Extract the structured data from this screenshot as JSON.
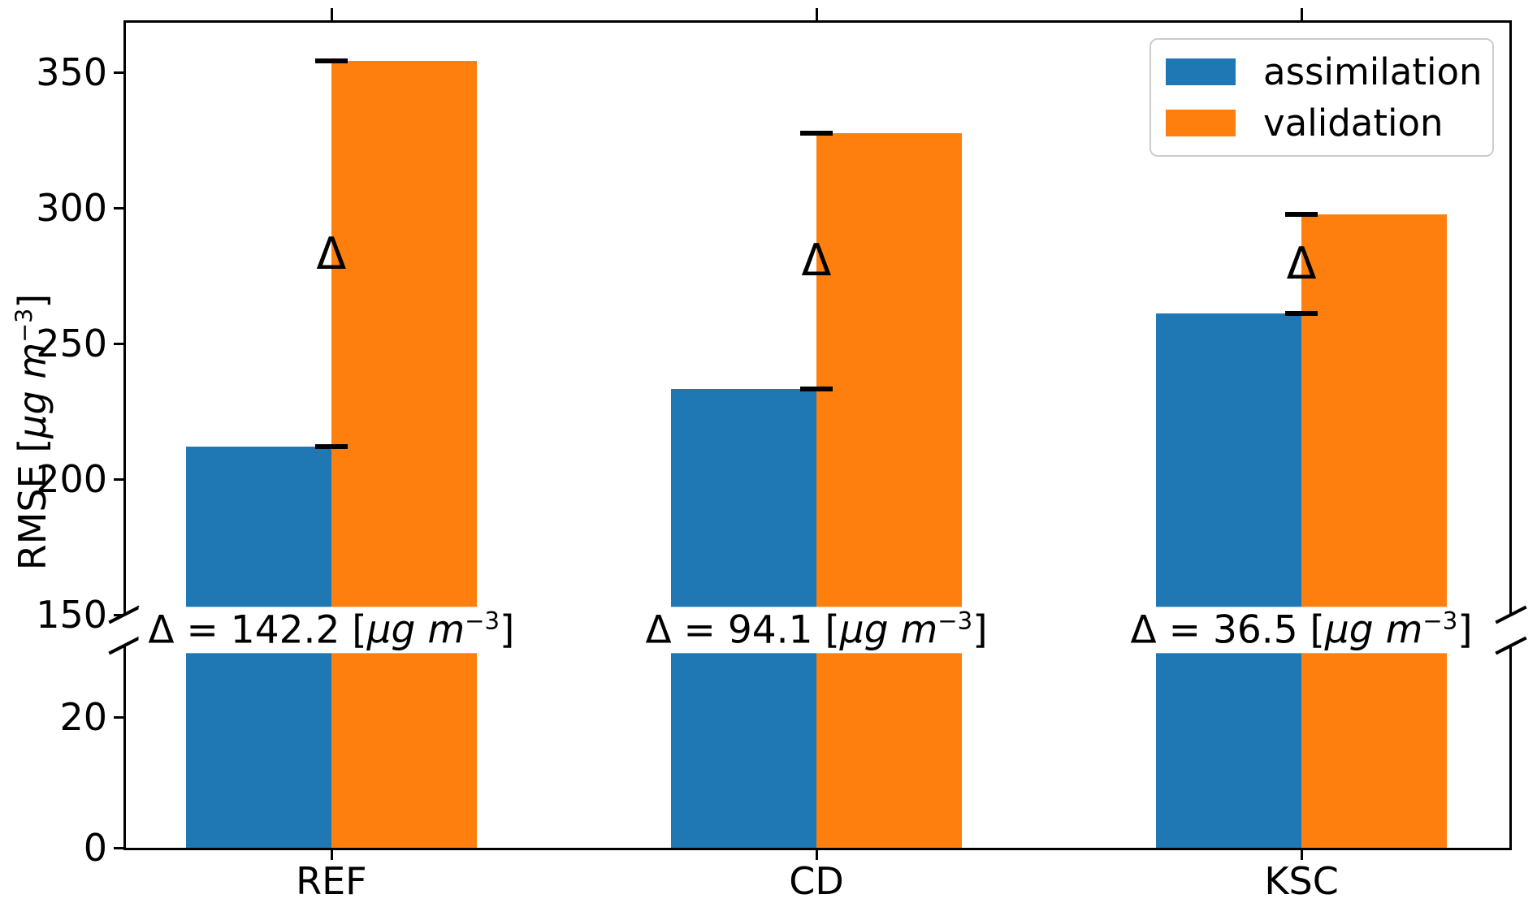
{
  "chart_data": {
    "type": "bar",
    "title": "",
    "categories": [
      "REF",
      "CD",
      "KSC"
    ],
    "series": [
      {
        "name": "assimilation",
        "color": "#1f77b4",
        "values": [
          211.8,
          233.3,
          261.0
        ]
      },
      {
        "name": "validation",
        "color": "#ff7f0e",
        "values": [
          354.0,
          327.4,
          297.5
        ]
      }
    ],
    "deltas": [
      "142.2",
      "94.1",
      "36.5"
    ],
    "delta_marker": "Δ",
    "annotation_format": {
      "prefix": "Δ = ",
      "bracket_open": " [",
      "unit_italic": "µg m",
      "superscript": "−3",
      "bracket_close": "]"
    },
    "ylabel_format": {
      "prefix": "RMSE [",
      "unit_italic": "µg m",
      "superscript": "−3",
      "suffix": "]"
    },
    "y_axis": {
      "broken": true,
      "top_panel": {
        "range": [
          150,
          369
        ],
        "ticks": [
          150,
          200,
          250,
          300,
          350
        ]
      },
      "bottom_panel": {
        "range": [
          0,
          31
        ],
        "ticks": [
          0,
          20
        ]
      }
    },
    "x_axis": {
      "tick_labels": [
        "REF",
        "CD",
        "KSC"
      ]
    },
    "legend": {
      "position": "upper right",
      "entries": [
        "assimilation",
        "validation"
      ]
    },
    "grid": false,
    "colors": {
      "axis": "#000000",
      "background": "#ffffff",
      "legend_border": "#cccccc"
    }
  }
}
